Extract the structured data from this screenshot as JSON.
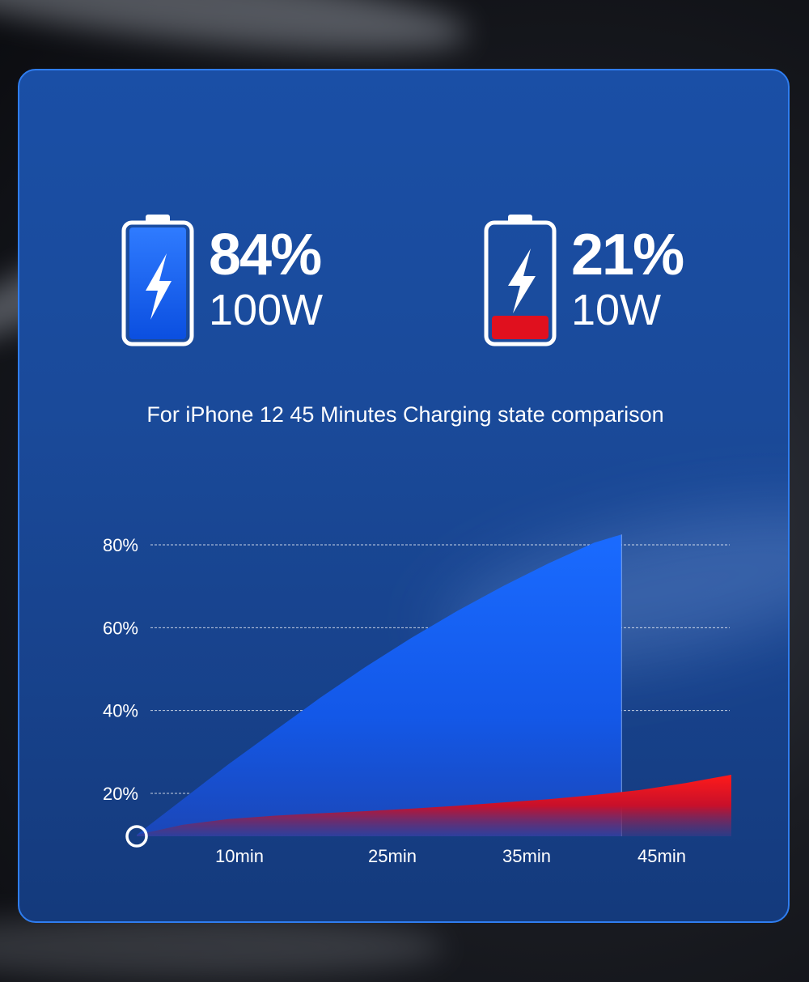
{
  "comparison": {
    "fast": {
      "percent": "84%",
      "power": "100W",
      "level": 0.84
    },
    "slow": {
      "percent": "21%",
      "power": "10W",
      "level": 0.21
    }
  },
  "colors": {
    "fast": "#1565ff",
    "slow": "#e0101e",
    "panel": "#1a4fa6"
  },
  "icons": {
    "battery": "battery-icon",
    "bolt": "lightning-bolt-icon"
  },
  "subtitle": "For iPhone 12 45 Minutes Charging state comparison",
  "chart_data": {
    "type": "area",
    "y_ticks": [
      "80%",
      "60%",
      "40%",
      "20%"
    ],
    "x_ticks": [
      "10min",
      "25min",
      "35min",
      "45min"
    ],
    "ylim": [
      10,
      80
    ],
    "grid": true,
    "series": [
      {
        "color": "#1565ff",
        "points": [
          [
            0,
            10
          ],
          [
            5,
            18.5
          ],
          [
            10,
            27
          ],
          [
            15,
            35
          ],
          [
            20,
            43
          ],
          [
            25,
            50.5
          ],
          [
            30,
            57.5
          ],
          [
            35,
            64
          ],
          [
            40,
            70
          ],
          [
            45,
            75.5
          ],
          [
            50,
            80.5
          ],
          [
            53,
            82.5
          ]
        ]
      },
      {
        "color": "#e0101e",
        "points": [
          [
            0,
            10
          ],
          [
            5,
            12.4
          ],
          [
            10,
            13.8
          ],
          [
            15,
            14.6
          ],
          [
            20,
            15.2
          ],
          [
            25,
            15.7
          ],
          [
            30,
            16.3
          ],
          [
            35,
            17
          ],
          [
            40,
            17.8
          ],
          [
            45,
            18.6
          ],
          [
            50,
            19.6
          ],
          [
            55,
            20.8
          ],
          [
            60,
            22.5
          ],
          [
            65,
            24.5
          ]
        ]
      }
    ]
  }
}
